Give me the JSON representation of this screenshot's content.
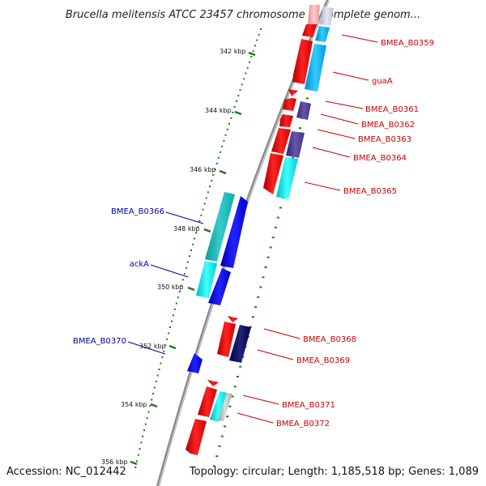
{
  "title": "Brucella melitensis ATCC 23457 chromosome II, complete genom...",
  "footer": {
    "accession": "Accession: NC_012442",
    "topology": "Topology: circular; Length: 1,185,518 bp; Genes: 1,089"
  },
  "colors": {
    "backbone": "#888888",
    "tick": "#1a7a1a",
    "forward_label": "#cc0000",
    "reverse_label": "#0000aa",
    "gene_red": "#ee1111",
    "gene_light_blue": "#11aaee",
    "gene_cyan": "#22dddd",
    "gene_teal": "#22bbbb",
    "gene_purple": "#554499",
    "gene_blue": "#1111dd",
    "gene_navy": "#111166",
    "gene_pink": "#ffaaaa",
    "gene_lavender": "#ccccee",
    "gene_grey": "#bbbbbb"
  },
  "tick_labels": [
    "342 kbp",
    "344 kbp",
    "346 kbp",
    "348 kbp",
    "350 kbp",
    "352 kbp",
    "354 kbp",
    "356 kbp"
  ],
  "gene_labels": {
    "forward": [
      "BMEA_B0359",
      "guaA",
      "BMEA_B0361",
      "BMEA_B0362",
      "BMEA_B0363",
      "BMEA_B0364",
      "BMEA_B0365",
      "BMEA_B0368",
      "BMEA_B0369",
      "BMEA_B0371",
      "BMEA_B0372"
    ],
    "reverse": [
      "BMEA_B0366",
      "ackA",
      "BMEA_B0370"
    ]
  }
}
